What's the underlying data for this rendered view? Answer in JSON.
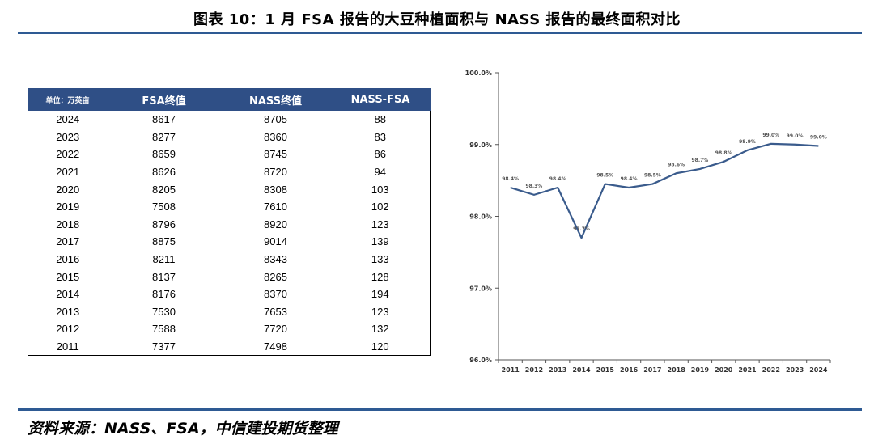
{
  "title": "图表 10：1 月 FSA 报告的大豆种植面积与 NASS 报告的最终面积对比",
  "source": "资料来源：NASS、FSA，中信建投期货整理",
  "table": {
    "headers": [
      "单位：万英亩",
      "FSA终值",
      "NASS终值",
      "NASS-FSA"
    ],
    "rows": [
      [
        "2024",
        "8617",
        "8705",
        "88"
      ],
      [
        "2023",
        "8277",
        "8360",
        "83"
      ],
      [
        "2022",
        "8659",
        "8745",
        "86"
      ],
      [
        "2021",
        "8626",
        "8720",
        "94"
      ],
      [
        "2020",
        "8205",
        "8308",
        "103"
      ],
      [
        "2019",
        "7508",
        "7610",
        "102"
      ],
      [
        "2018",
        "8796",
        "8920",
        "123"
      ],
      [
        "2017",
        "8875",
        "9014",
        "139"
      ],
      [
        "2016",
        "8211",
        "8343",
        "133"
      ],
      [
        "2015",
        "8137",
        "8265",
        "128"
      ],
      [
        "2014",
        "8176",
        "8370",
        "194"
      ],
      [
        "2013",
        "7530",
        "7653",
        "123"
      ],
      [
        "2012",
        "7588",
        "7720",
        "132"
      ],
      [
        "2011",
        "7377",
        "7498",
        "120"
      ]
    ]
  },
  "chart_data": {
    "type": "line",
    "x": [
      "2011",
      "2012",
      "2013",
      "2014",
      "2015",
      "2016",
      "2017",
      "2018",
      "2019",
      "2020",
      "2021",
      "2022",
      "2023",
      "2024"
    ],
    "series": [
      {
        "values": [
          98.4,
          98.3,
          98.4,
          97.7,
          98.45,
          98.4,
          98.45,
          98.6,
          98.66,
          98.76,
          98.92,
          99.01,
          99.0,
          98.98
        ],
        "labels": [
          "98.4%",
          "98.3%",
          "98.4%",
          "97.7%",
          "98.5%",
          "98.4%",
          "98.5%",
          "98.6%",
          "98.7%",
          "98.8%",
          "98.9%",
          "99.0%",
          "99.0%",
          "99.0%"
        ]
      }
    ],
    "ylim": [
      96.0,
      100.0
    ],
    "yticks": [
      "96.0%",
      "97.0%",
      "98.0%",
      "99.0%",
      "100.0%"
    ],
    "y_tick_values": [
      96,
      97,
      98,
      99,
      100
    ],
    "line_color": "#3A5B8C",
    "grid": false,
    "legend": "none"
  }
}
